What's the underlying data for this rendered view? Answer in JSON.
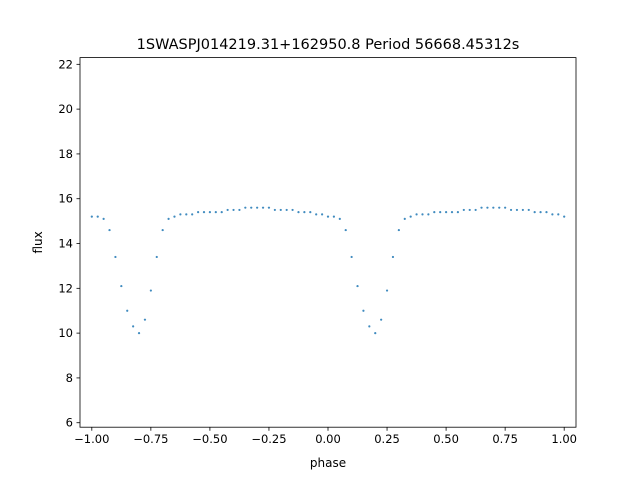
{
  "chart_data": {
    "type": "scatter",
    "title": "1SWASPJ014219.31+162950.8 Period 56668.45312s",
    "xlabel": "phase",
    "ylabel": "flux",
    "xlim": [
      -1.05,
      1.05
    ],
    "ylim": [
      5.8,
      22.3
    ],
    "xticks": [
      -1.0,
      -0.75,
      -0.5,
      -0.25,
      0.0,
      0.25,
      0.5,
      0.75,
      1.0
    ],
    "xtick_labels": [
      "−1.00",
      "−0.75",
      "−0.50",
      "−0.25",
      "0.00",
      "0.25",
      "0.50",
      "0.75",
      "1.00"
    ],
    "yticks": [
      6,
      8,
      10,
      12,
      14,
      16,
      18,
      20,
      22
    ],
    "ytick_labels": [
      "6",
      "8",
      "10",
      "12",
      "14",
      "16",
      "18",
      "20",
      "22"
    ],
    "grid": false,
    "legend": "none",
    "marker_color": "#1f77b4",
    "series": [
      {
        "x": [
          -1.0,
          -0.975,
          -0.95,
          -0.925,
          -0.9,
          -0.875,
          -0.85,
          -0.825,
          -0.8,
          -0.775,
          -0.75,
          -0.725,
          -0.7,
          -0.675,
          -0.65,
          -0.625,
          -0.6,
          -0.575,
          -0.55,
          -0.525,
          -0.5,
          -0.475,
          -0.45,
          -0.425,
          -0.4,
          -0.375,
          -0.35,
          -0.325,
          -0.3,
          -0.275,
          -0.25,
          -0.225,
          -0.2,
          -0.175,
          -0.15,
          -0.125,
          -0.1,
          -0.075,
          -0.05,
          -0.025,
          0.0,
          0.025,
          0.05,
          0.075,
          0.1,
          0.125,
          0.15,
          0.175,
          0.2,
          0.225,
          0.25,
          0.275,
          0.3,
          0.325,
          0.35,
          0.375,
          0.4,
          0.425,
          0.45,
          0.475,
          0.5,
          0.525,
          0.55,
          0.575,
          0.6,
          0.625,
          0.65,
          0.675,
          0.7,
          0.725,
          0.75,
          0.775,
          0.8,
          0.825,
          0.85,
          0.875,
          0.9,
          0.925,
          0.95,
          0.975,
          1.0
        ],
        "y": [
          15.2,
          15.2,
          15.1,
          14.6,
          13.4,
          12.1,
          11.0,
          10.3,
          10.0,
          10.6,
          11.9,
          13.4,
          14.6,
          15.1,
          15.2,
          15.3,
          15.3,
          15.3,
          15.4,
          15.4,
          15.4,
          15.4,
          15.4,
          15.5,
          15.5,
          15.5,
          15.6,
          15.6,
          15.6,
          15.6,
          15.6,
          15.5,
          15.5,
          15.5,
          15.5,
          15.4,
          15.4,
          15.4,
          15.3,
          15.3,
          15.2,
          15.2,
          15.1,
          14.6,
          13.4,
          12.1,
          11.0,
          10.3,
          10.0,
          10.6,
          11.9,
          13.4,
          14.6,
          15.1,
          15.2,
          15.3,
          15.3,
          15.3,
          15.4,
          15.4,
          15.4,
          15.4,
          15.4,
          15.5,
          15.5,
          15.5,
          15.6,
          15.6,
          15.6,
          15.6,
          15.6,
          15.5,
          15.5,
          15.5,
          15.5,
          15.4,
          15.4,
          15.4,
          15.3,
          15.3,
          15.2
        ]
      }
    ]
  }
}
